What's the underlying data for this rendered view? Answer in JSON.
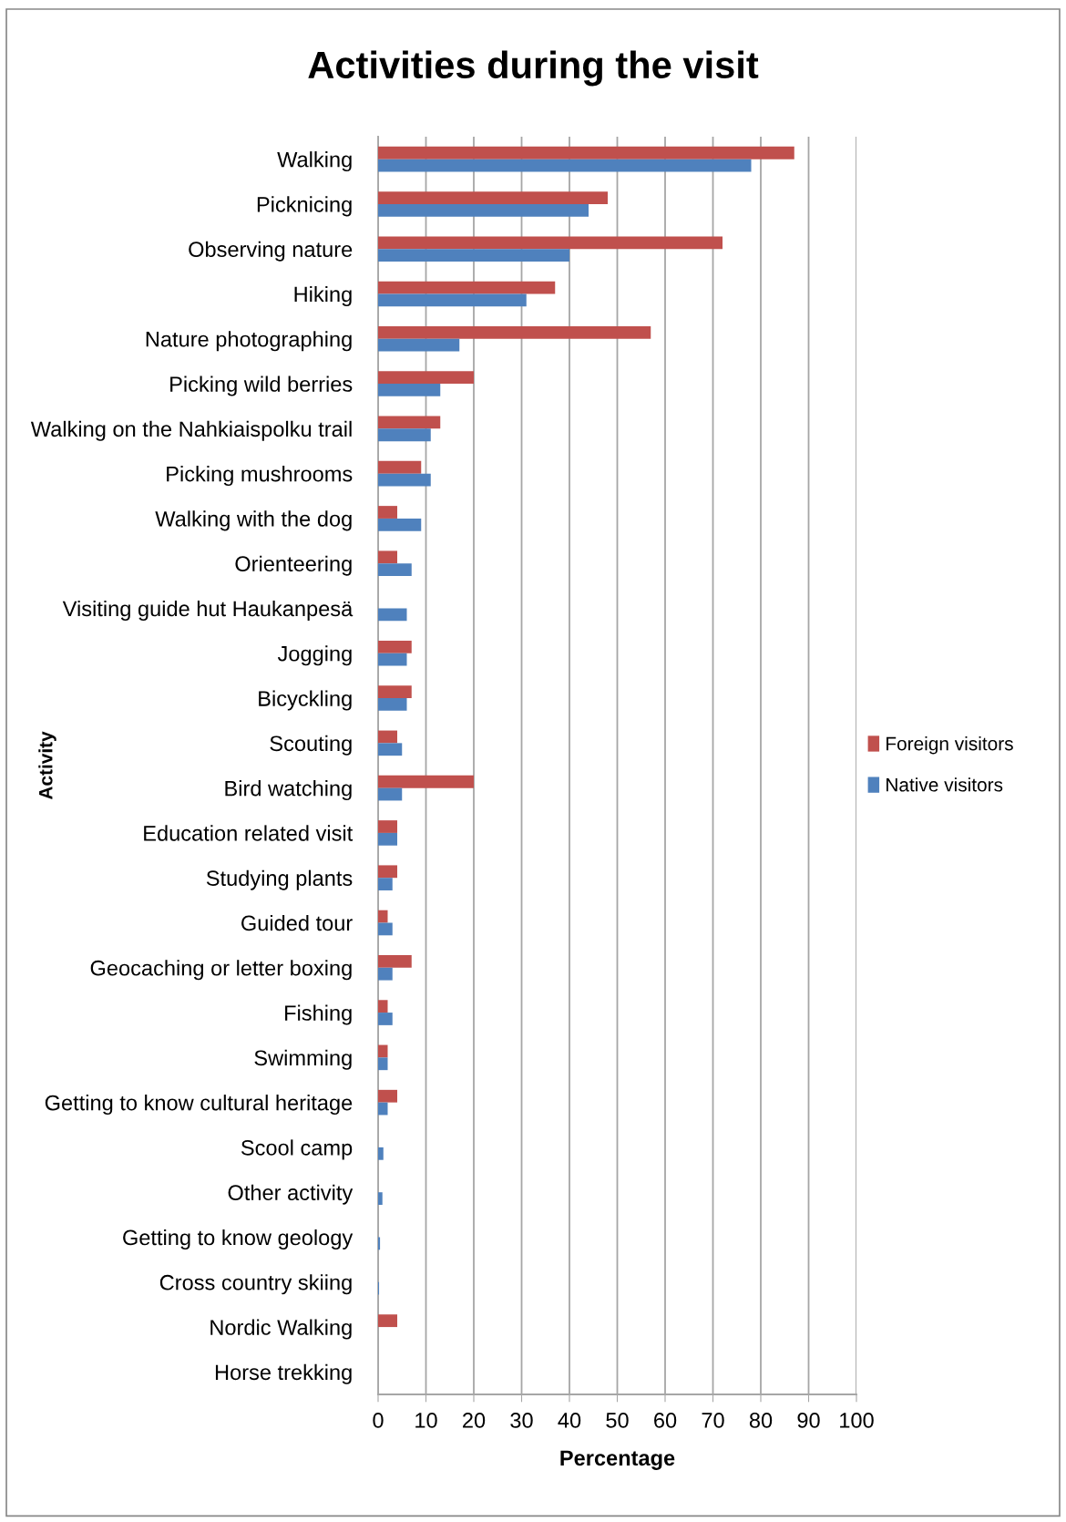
{
  "chart_data": {
    "type": "bar",
    "orientation": "horizontal",
    "title": "Activities during the visit",
    "xlabel": "Percentage",
    "ylabel": "Activity",
    "categories": [
      "Walking",
      "Picknicing",
      "Observing nature",
      "Hiking",
      "Nature photographing",
      "Picking wild berries",
      "Walking on the Nahkiaispolku trail",
      "Picking mushrooms",
      "Walking with the dog",
      "Orienteering",
      "Visiting guide hut Haukanpesä",
      "Jogging",
      "Bicyckling",
      "Scouting",
      "Bird watching",
      "Education related visit",
      "Studying plants",
      "Guided tour",
      "Geocaching or letter boxing",
      "Fishing",
      "Swimming",
      "Getting to know cultural heritage",
      "Scool camp",
      "Other activity",
      "Getting to know geology",
      "Cross country skiing",
      "Nordic Walking",
      "Horse trekking"
    ],
    "series": [
      {
        "name": "Foreign visitors",
        "color": "#c0504d",
        "values": [
          87,
          48,
          72,
          37,
          57,
          20,
          13,
          9,
          4,
          4,
          0,
          7,
          7,
          4,
          20,
          4,
          4,
          2,
          7,
          2,
          2,
          4,
          0,
          0,
          0,
          0,
          4,
          0
        ]
      },
      {
        "name": "Native visitors",
        "color": "#4f81bd",
        "values": [
          78,
          44,
          40,
          31,
          17,
          13,
          11,
          11,
          9,
          7,
          6,
          6,
          6,
          5,
          5,
          4,
          3,
          3,
          3,
          3,
          2,
          2,
          1.1,
          0.9,
          0.4,
          0.2,
          0,
          0
        ]
      }
    ],
    "xlim": [
      0,
      100
    ],
    "xticks": [
      0,
      10,
      20,
      30,
      40,
      50,
      60,
      70,
      80,
      90,
      100
    ],
    "grid": "x",
    "legend": "right"
  }
}
